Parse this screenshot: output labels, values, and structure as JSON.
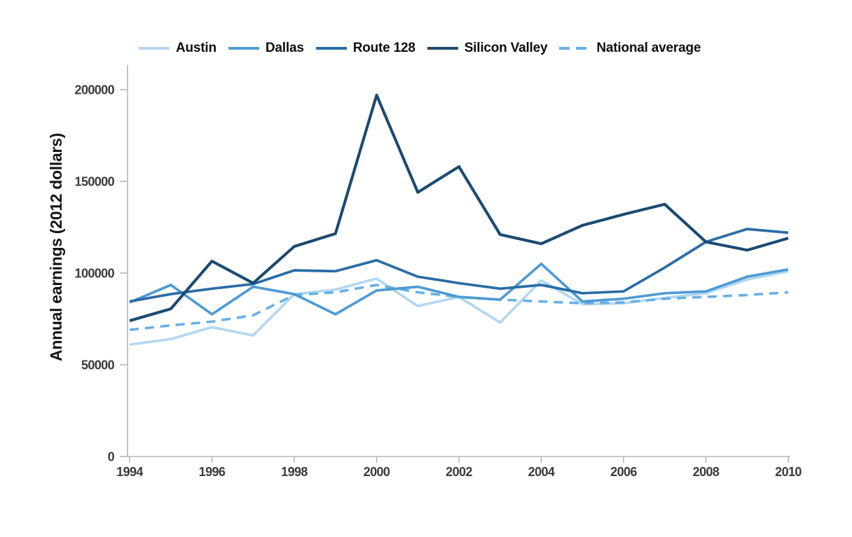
{
  "page": {
    "background": "#ffffff",
    "text_color": "#3b3b3d"
  },
  "chart_data": {
    "type": "line",
    "title": "",
    "xlabel": "",
    "ylabel": "Annual earnings (2012 dollars)",
    "xlim": [
      1994,
      2010
    ],
    "ylim": [
      0,
      210000
    ],
    "grid": false,
    "legend_position": "top",
    "x": [
      1994,
      1995,
      1996,
      1997,
      1998,
      1999,
      2000,
      2001,
      2002,
      2003,
      2004,
      2005,
      2006,
      2007,
      2008,
      2009,
      2010
    ],
    "x_ticks": [
      1994,
      1996,
      1998,
      2000,
      2002,
      2004,
      2006,
      2008,
      2010
    ],
    "x_tick_labels": [
      "1994",
      "1996",
      "1998",
      "2000",
      "2002",
      "2004",
      "2006",
      "2008",
      "2010"
    ],
    "y_ticks": [
      0,
      50000,
      100000,
      150000,
      200000
    ],
    "y_tick_labels": [
      "0",
      "50000",
      "100000",
      "150000",
      "200000"
    ],
    "axis_color": "#b4b7ba",
    "series": [
      {
        "name": "Austin",
        "color": "#b3d7f0",
        "dashed": false,
        "width": 3.7,
        "values": [
          61000,
          64000,
          70500,
          66000,
          88500,
          91000,
          97000,
          82000,
          87000,
          73000,
          96000,
          83000,
          83500,
          86500,
          89000,
          96500,
          101000
        ]
      },
      {
        "name": "Dallas",
        "color": "#4e9bd5",
        "dashed": false,
        "width": 3.7,
        "values": [
          84000,
          93500,
          77500,
          92500,
          88500,
          77500,
          90500,
          92500,
          87000,
          85500,
          105000,
          84500,
          86000,
          89000,
          90000,
          98000,
          102000
        ]
      },
      {
        "name": "Route 128",
        "color": "#2a6ca6",
        "dashed": false,
        "width": 3.7,
        "values": [
          84500,
          88500,
          91500,
          94000,
          101500,
          101000,
          107000,
          98000,
          94500,
          91500,
          93500,
          89000,
          90000,
          103000,
          117000,
          124000,
          122000
        ]
      },
      {
        "name": "Silicon Valley",
        "color": "#1b4a72",
        "dashed": false,
        "width": 4.1,
        "values": [
          74000,
          80500,
          106500,
          94500,
          114500,
          121500,
          197000,
          144000,
          158000,
          121000,
          116000,
          126000,
          132000,
          137500,
          117000,
          112500,
          119000
        ]
      },
      {
        "name": "National average",
        "color": "#66b0e8",
        "dashed": true,
        "width": 3.6,
        "values": [
          69000,
          71500,
          73500,
          77000,
          88000,
          89500,
          93500,
          89500,
          87000,
          85500,
          84500,
          83500,
          84000,
          86000,
          87000,
          88000,
          89500
        ]
      }
    ]
  }
}
